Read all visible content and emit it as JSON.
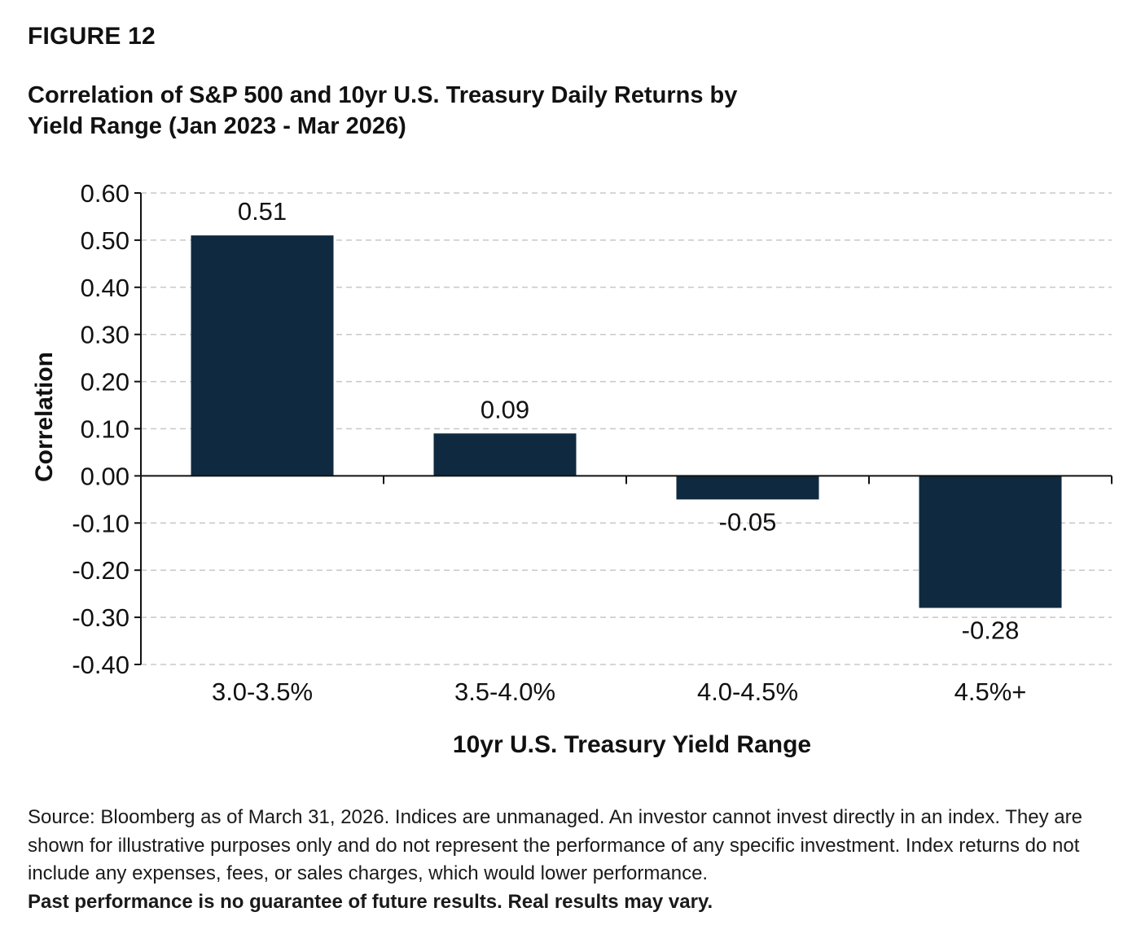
{
  "figure_label": "FIGURE 12",
  "title_line1": "Correlation of S&P 500 and 10yr U.S. Treasury Daily Returns by",
  "title_line2": "Yield Range  (Jan 2023 - Mar 2026)",
  "chart_data": {
    "type": "bar",
    "categories": [
      "3.0-3.5%",
      "3.5-4.0%",
      "4.0-4.5%",
      "4.5%+"
    ],
    "values": [
      0.51,
      0.09,
      -0.05,
      -0.28
    ],
    "data_labels": [
      "0.51",
      "0.09",
      "-0.05",
      "-0.28"
    ],
    "xlabel": "10yr U.S. Treasury Yield Range",
    "ylabel": "Correlation",
    "ylim": [
      -0.4,
      0.6
    ],
    "yticks": [
      0.6,
      0.5,
      0.4,
      0.3,
      0.2,
      0.1,
      0.0,
      -0.1,
      -0.2,
      -0.3,
      -0.4
    ],
    "ytick_labels": [
      "0.60",
      "0.50",
      "0.40",
      "0.30",
      "0.20",
      "0.10",
      "0.00",
      "-0.10",
      "-0.20",
      "-0.30",
      "-0.40"
    ],
    "grid": "horizontal-dashed",
    "bar_color": "#0f2a40"
  },
  "note": {
    "text": "Source: Bloomberg as of March 31, 2026. Indices are unmanaged. An investor cannot invest directly in an index. They are shown for illustrative purposes only and do not represent the performance of any specific investment. Index returns do not include any expenses, fees, or sales charges, which would lower performance.",
    "bold_text": "Past performance is no guarantee of future results. Real results may vary."
  }
}
